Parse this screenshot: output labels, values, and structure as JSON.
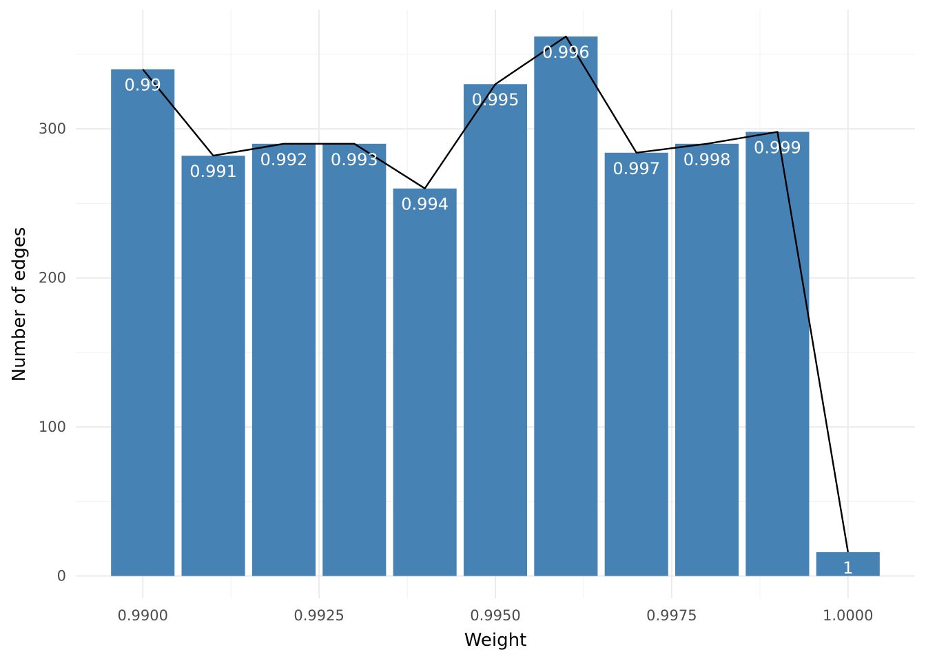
{
  "chart_data": {
    "type": "bar",
    "overlay": "line",
    "xlabel": "Weight",
    "ylabel": "Number of edges",
    "x": [
      0.99,
      0.991,
      0.992,
      0.993,
      0.994,
      0.995,
      0.996,
      0.997,
      0.998,
      0.999,
      1.0
    ],
    "values": [
      340,
      282,
      290,
      290,
      260,
      330,
      362,
      284,
      290,
      298,
      16
    ],
    "bar_labels": [
      "0.99",
      "0.991",
      "0.992",
      "0.993",
      "0.994",
      "0.995",
      "0.996",
      "0.997",
      "0.998",
      "0.999",
      "1"
    ],
    "bar_width": 0.0009,
    "xlim": [
      0.98905,
      1.00095
    ],
    "ylim": [
      -15,
      380
    ],
    "x_ticks": [
      0.99,
      0.9925,
      0.995,
      0.9975,
      1.0
    ],
    "x_tick_labels": [
      "0.9900",
      "0.9925",
      "0.9950",
      "0.9975",
      "1.0000"
    ],
    "x_minor_ticks": [
      0.99125,
      0.99375,
      0.99625,
      0.99875
    ],
    "y_ticks": [
      0,
      100,
      200,
      300
    ],
    "y_tick_labels": [
      "0",
      "100",
      "200",
      "300"
    ],
    "y_minor_ticks": [
      50,
      150,
      250,
      350
    ],
    "grid": true,
    "legend": "none",
    "colors": {
      "bar": "#4682b4",
      "line": "#000000",
      "label": "#ffffff",
      "grid": "#ebebeb"
    }
  }
}
